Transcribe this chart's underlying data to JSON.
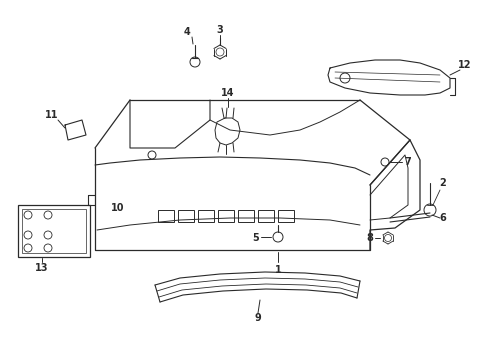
{
  "background_color": "#ffffff",
  "line_color": "#2a2a2a",
  "figsize": [
    4.89,
    3.6
  ],
  "dpi": 100
}
